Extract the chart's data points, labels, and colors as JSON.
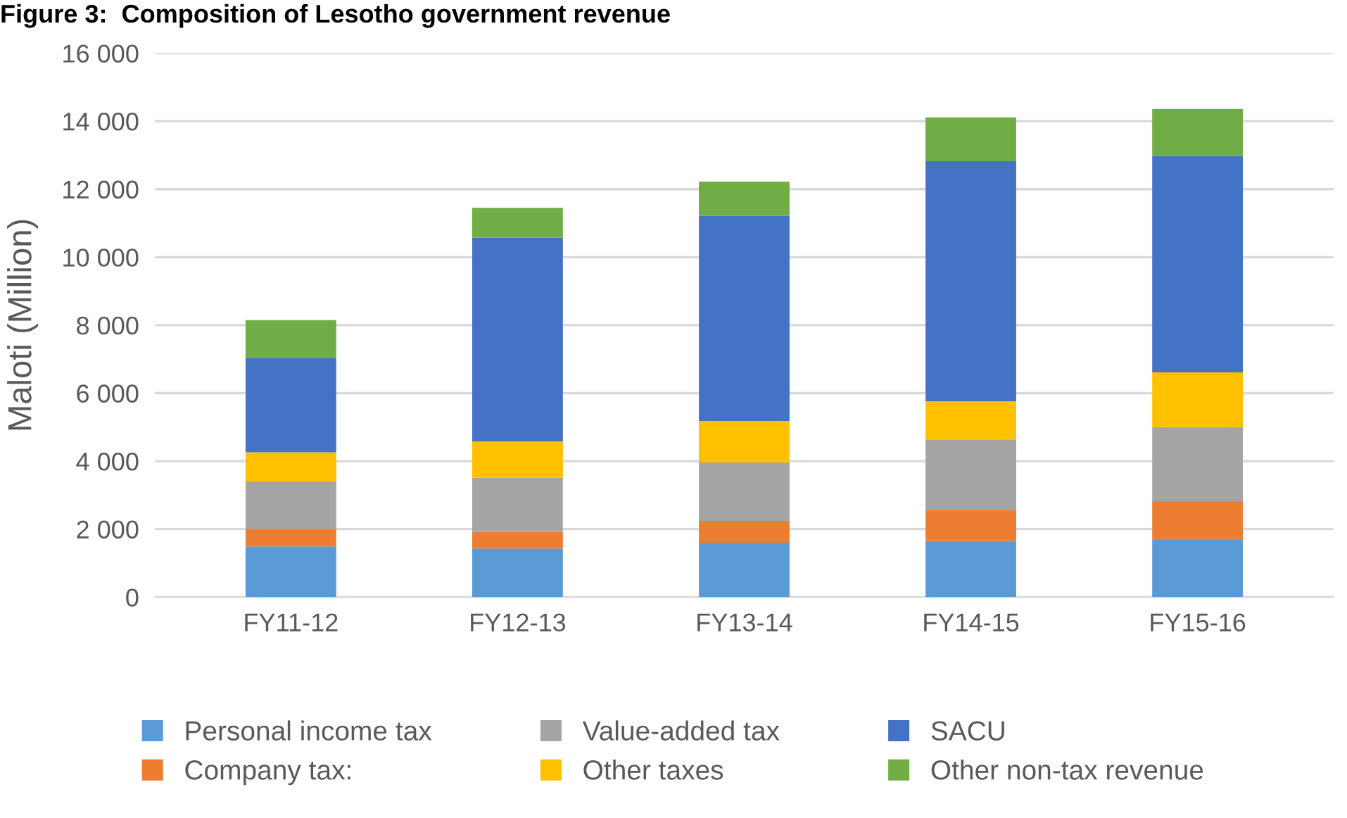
{
  "chart_data": {
    "type": "bar",
    "stacked": true,
    "title": "Figure 3:  Composition of Lesotho government revenue",
    "ylabel": "Maloti (Million)",
    "categories": [
      "FY11-12",
      "FY12-13",
      "FY13-14",
      "FY14-15",
      "FY15-16"
    ],
    "series": [
      {
        "name": "Personal income tax",
        "color": "#5b9bd5",
        "values": [
          1490,
          1430,
          1600,
          1650,
          1710
        ]
      },
      {
        "name": "Company tax:",
        "color": "#ed7d31",
        "values": [
          520,
          490,
          640,
          920,
          1110
        ]
      },
      {
        "name": "Value-added tax",
        "color": "#a5a5a5",
        "values": [
          1390,
          1590,
          1720,
          2070,
          2180
        ]
      },
      {
        "name": "Other taxes",
        "color": "#ffc000",
        "values": [
          860,
          1070,
          1220,
          1120,
          1610
        ]
      },
      {
        "name": "SACU",
        "color": "#4472c4",
        "values": [
          2780,
          5990,
          6030,
          7060,
          6360
        ]
      },
      {
        "name": "Other non-tax revenue",
        "color": "#70ad47",
        "values": [
          1110,
          880,
          1010,
          1290,
          1390
        ]
      }
    ],
    "ylim": [
      0,
      16000
    ],
    "yticks": [
      0,
      {
        "value": 2000,
        "label": "2 000"
      },
      {
        "value": 4000,
        "label": "4 000"
      },
      {
        "value": 6000,
        "label": "6 000"
      },
      {
        "value": 8000,
        "label": "8 000"
      },
      {
        "value": 10000,
        "label": "10 000"
      },
      {
        "value": 12000,
        "label": "12 000"
      },
      {
        "value": 14000,
        "label": "14 000"
      },
      {
        "value": 16000,
        "label": "16 000"
      }
    ],
    "grid": "y",
    "legend": "bottom"
  }
}
